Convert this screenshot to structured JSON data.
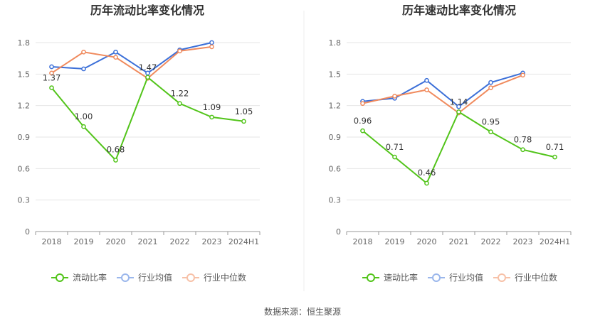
{
  "source_label": "数据来源：恒生聚源",
  "chart_data": [
    {
      "type": "line",
      "title": "历年流动比率变化情况",
      "categories": [
        "2018",
        "2019",
        "2020",
        "2021",
        "2022",
        "2023",
        "2024H1"
      ],
      "ylim": [
        0,
        1.8
      ],
      "yticks": [
        "0",
        "0.3",
        "0.6",
        "0.9",
        "1.2",
        "1.5",
        "1.8"
      ],
      "grid": true,
      "legend_position": "bottom",
      "series": [
        {
          "name": "流动比率",
          "color": "#52c41a",
          "values": [
            1.37,
            1.0,
            0.68,
            1.47,
            1.22,
            1.09,
            1.05
          ],
          "labels": [
            "1.37",
            "1.00",
            "0.68",
            "1.47",
            "1.22",
            "1.09",
            "1.05"
          ]
        },
        {
          "name": "行业均值",
          "color": "#3b6fd8",
          "values": [
            1.57,
            1.55,
            1.71,
            1.51,
            1.73,
            1.8,
            null
          ]
        },
        {
          "name": "行业中位数",
          "color": "#f08a5d",
          "values": [
            1.51,
            1.71,
            1.66,
            1.46,
            1.72,
            1.76,
            null
          ]
        }
      ]
    },
    {
      "type": "line",
      "title": "历年速动比率变化情况",
      "categories": [
        "2018",
        "2019",
        "2020",
        "2021",
        "2022",
        "2023",
        "2024H1"
      ],
      "ylim": [
        0,
        1.8
      ],
      "yticks": [
        "0",
        "0.3",
        "0.6",
        "0.9",
        "1.2",
        "1.5",
        "1.8"
      ],
      "grid": true,
      "legend_position": "bottom",
      "series": [
        {
          "name": "速动比率",
          "color": "#52c41a",
          "values": [
            0.96,
            0.71,
            0.46,
            1.14,
            0.95,
            0.78,
            0.71
          ],
          "labels": [
            "0.96",
            "0.71",
            "0.46",
            "1.14",
            "0.95",
            "0.78",
            "0.71"
          ]
        },
        {
          "name": "行业均值",
          "color": "#3b6fd8",
          "values": [
            1.24,
            1.27,
            1.44,
            1.19,
            1.42,
            1.51,
            null
          ]
        },
        {
          "name": "行业中位数",
          "color": "#f08a5d",
          "values": [
            1.22,
            1.29,
            1.35,
            1.13,
            1.37,
            1.49,
            null
          ]
        }
      ]
    }
  ]
}
